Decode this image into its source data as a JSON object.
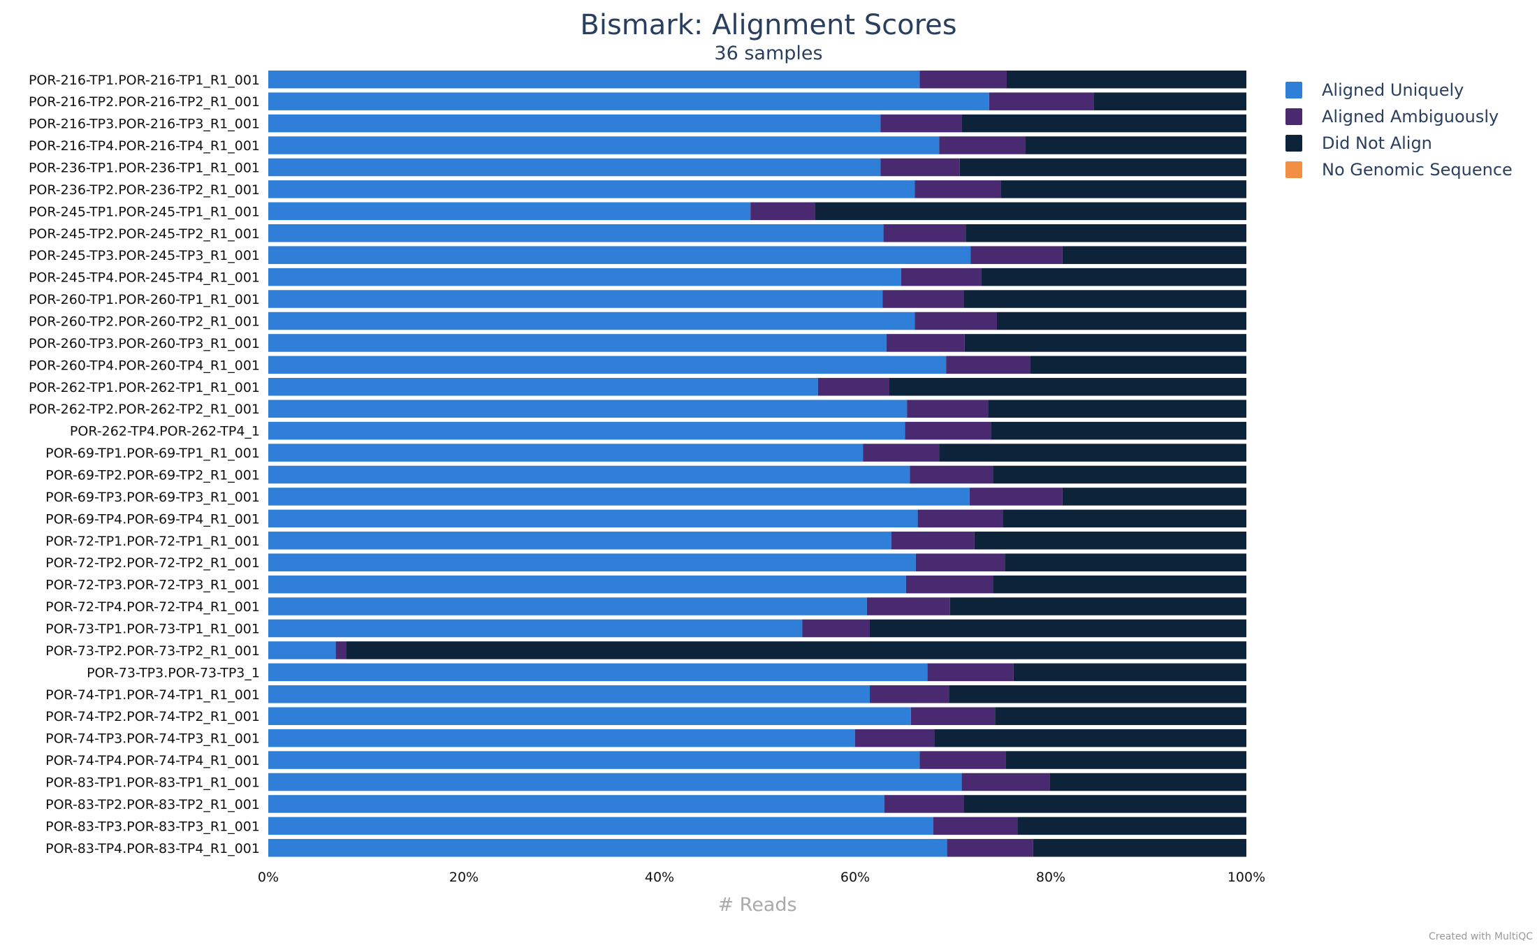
{
  "chart_data": {
    "type": "bar",
    "orientation": "horizontal",
    "stacked": true,
    "percent": true,
    "title": "Bismark: Alignment Scores",
    "subtitle": "36 samples",
    "xlabel": "# Reads",
    "xlim": [
      0,
      100
    ],
    "x_ticks": [
      "0%",
      "20%",
      "40%",
      "60%",
      "80%",
      "100%"
    ],
    "legend_placement": "top-right",
    "credit": "Created with MultiQC",
    "categories": [
      "POR-216-TP1.POR-216-TP1_R1_001",
      "POR-216-TP2.POR-216-TP2_R1_001",
      "POR-216-TP3.POR-216-TP3_R1_001",
      "POR-216-TP4.POR-216-TP4_R1_001",
      "POR-236-TP1.POR-236-TP1_R1_001",
      "POR-236-TP2.POR-236-TP2_R1_001",
      "POR-245-TP1.POR-245-TP1_R1_001",
      "POR-245-TP2.POR-245-TP2_R1_001",
      "POR-245-TP3.POR-245-TP3_R1_001",
      "POR-245-TP4.POR-245-TP4_R1_001",
      "POR-260-TP1.POR-260-TP1_R1_001",
      "POR-260-TP2.POR-260-TP2_R1_001",
      "POR-260-TP3.POR-260-TP3_R1_001",
      "POR-260-TP4.POR-260-TP4_R1_001",
      "POR-262-TP1.POR-262-TP1_R1_001",
      "POR-262-TP2.POR-262-TP2_R1_001",
      "POR-262-TP4.POR-262-TP4_1",
      "POR-69-TP1.POR-69-TP1_R1_001",
      "POR-69-TP2.POR-69-TP2_R1_001",
      "POR-69-TP3.POR-69-TP3_R1_001",
      "POR-69-TP4.POR-69-TP4_R1_001",
      "POR-72-TP1.POR-72-TP1_R1_001",
      "POR-72-TP2.POR-72-TP2_R1_001",
      "POR-72-TP3.POR-72-TP3_R1_001",
      "POR-72-TP4.POR-72-TP4_R1_001",
      "POR-73-TP1.POR-73-TP1_R1_001",
      "POR-73-TP2.POR-73-TP2_R1_001",
      "POR-73-TP3.POR-73-TP3_1",
      "POR-74-TP1.POR-74-TP1_R1_001",
      "POR-74-TP2.POR-74-TP2_R1_001",
      "POR-74-TP3.POR-74-TP3_R1_001",
      "POR-74-TP4.POR-74-TP4_R1_001",
      "POR-83-TP1.POR-83-TP1_R1_001",
      "POR-83-TP2.POR-83-TP2_R1_001",
      "POR-83-TP3.POR-83-TP3_R1_001",
      "POR-83-TP4.POR-83-TP4_R1_001"
    ],
    "series": [
      {
        "name": "Aligned Uniquely",
        "color": "#2f7ed8",
        "values": [
          66.6,
          73.7,
          62.6,
          68.6,
          62.6,
          66.1,
          49.3,
          62.9,
          71.8,
          64.7,
          62.8,
          66.1,
          63.2,
          69.3,
          56.2,
          65.3,
          65.1,
          60.8,
          65.6,
          71.7,
          66.4,
          63.7,
          66.2,
          65.2,
          61.2,
          54.6,
          6.9,
          67.4,
          61.5,
          65.7,
          60.0,
          66.6,
          70.9,
          63.0,
          68.0,
          69.4
        ]
      },
      {
        "name": "Aligned Ambiguously",
        "color": "#492970",
        "values": [
          8.9,
          10.7,
          8.3,
          8.8,
          8.1,
          8.8,
          6.6,
          8.4,
          9.4,
          8.2,
          8.3,
          8.4,
          8.0,
          8.6,
          7.3,
          8.3,
          8.8,
          7.8,
          8.5,
          9.5,
          8.7,
          8.5,
          9.1,
          8.9,
          8.5,
          6.9,
          1.1,
          8.8,
          8.1,
          8.6,
          8.1,
          8.8,
          9.0,
          8.1,
          8.6,
          8.8
        ]
      },
      {
        "name": "Did Not Align",
        "color": "#0d233a",
        "values": [
          24.5,
          15.6,
          29.1,
          22.6,
          29.3,
          25.1,
          44.1,
          28.7,
          18.8,
          27.1,
          28.9,
          25.5,
          28.8,
          22.1,
          36.5,
          26.4,
          26.1,
          31.4,
          25.9,
          18.8,
          24.9,
          27.8,
          24.7,
          25.9,
          30.3,
          38.5,
          92.0,
          23.8,
          30.4,
          25.7,
          31.9,
          24.6,
          20.1,
          28.9,
          23.4,
          21.8
        ]
      },
      {
        "name": "No Genomic Sequence",
        "color": "#f28f43",
        "values": [
          0,
          0,
          0,
          0,
          0,
          0,
          0,
          0,
          0,
          0,
          0,
          0,
          0,
          0,
          0,
          0,
          0,
          0,
          0,
          0,
          0,
          0,
          0,
          0,
          0,
          0,
          0,
          0,
          0,
          0,
          0,
          0,
          0,
          0,
          0,
          0
        ]
      }
    ]
  }
}
